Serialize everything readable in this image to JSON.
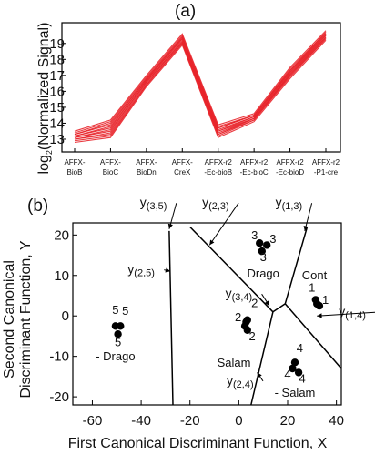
{
  "panel_a": {
    "label": "(a)",
    "ylabel_prefix": "log",
    "ylabel_sub": "2",
    "ylabel_rest": "(Normalized Signal)"
  },
  "panel_b": {
    "label": "(b)",
    "xlabel": "First Canonical Discriminant Function, X",
    "ylabel_line1": "Second Canonical",
    "ylabel_line2": "Discriminant Function, Y"
  },
  "colors": {
    "profile_lines": "#e8232a",
    "points": "#000000",
    "axes": "#000000"
  },
  "chart_data": [
    {
      "type": "line",
      "categories": [
        [
          "AFFX-",
          "BioB"
        ],
        [
          "AFFX-",
          "BioC"
        ],
        [
          "AFFX-",
          "BioDn"
        ],
        [
          "AFFX-",
          "CreX"
        ],
        [
          "AFFX-r2",
          "-Ec-bioB"
        ],
        [
          "AFFX-r2",
          "-Ec-bioC"
        ],
        [
          "AFFX-r2",
          "-Ec-bioD"
        ],
        [
          "AFFX-r2",
          "-P1-cre"
        ]
      ],
      "ylabel": "log2(Normalized Signal)",
      "yticks": [
        13,
        14,
        15,
        16,
        17,
        18,
        19
      ],
      "ylim": [
        12.2,
        20.3
      ],
      "series": [
        {
          "values": [
            12.8,
            13.1,
            16.3,
            18.9,
            13.1,
            14.1,
            16.8,
            19.2
          ]
        },
        {
          "values": [
            12.9,
            13.2,
            16.4,
            19.0,
            13.2,
            14.2,
            16.9,
            19.3
          ]
        },
        {
          "values": [
            13.0,
            13.3,
            16.4,
            19.0,
            13.3,
            14.2,
            17.0,
            19.3
          ]
        },
        {
          "values": [
            13.0,
            13.4,
            16.5,
            19.1,
            13.3,
            14.3,
            17.0,
            19.4
          ]
        },
        {
          "values": [
            13.1,
            13.5,
            16.6,
            19.1,
            13.4,
            14.3,
            17.1,
            19.4
          ]
        },
        {
          "values": [
            13.1,
            13.6,
            16.6,
            19.2,
            13.5,
            14.3,
            17.1,
            19.5
          ]
        },
        {
          "values": [
            13.2,
            13.7,
            16.7,
            19.3,
            13.5,
            14.4,
            17.2,
            19.5
          ]
        },
        {
          "values": [
            13.2,
            13.8,
            16.7,
            19.3,
            13.6,
            14.4,
            17.2,
            19.6
          ]
        },
        {
          "values": [
            13.3,
            13.9,
            16.8,
            19.4,
            13.7,
            14.5,
            17.3,
            19.6
          ]
        },
        {
          "values": [
            13.3,
            14.0,
            16.8,
            19.4,
            13.7,
            14.5,
            17.3,
            19.7
          ]
        },
        {
          "values": [
            13.4,
            14.1,
            16.9,
            19.5,
            13.8,
            14.5,
            17.4,
            19.7
          ]
        },
        {
          "values": [
            13.5,
            14.2,
            17.0,
            19.6,
            13.9,
            14.6,
            17.5,
            19.8
          ]
        }
      ]
    },
    {
      "type": "scatter",
      "xlabel": "First Canonical Discriminant Function, X",
      "ylabel": "Second Canonical Discriminant Function, Y",
      "xlim": [
        -68,
        42
      ],
      "ylim": [
        -22,
        23
      ],
      "xticks": [
        -60,
        -40,
        -20,
        0,
        20,
        40
      ],
      "yticks": [
        -20,
        -10,
        0,
        10,
        20
      ],
      "groups": [
        {
          "marker": "5",
          "region": "- Drago",
          "points": [
            [
              -50.5,
              -2.5
            ],
            [
              -48.5,
              -2.5
            ],
            [
              -49.5,
              -4.5
            ]
          ]
        },
        {
          "marker": "2",
          "region": "Salam",
          "points": [
            [
              3.5,
              -1.0
            ],
            [
              2.5,
              -2.5
            ],
            [
              3.5,
              -3.5
            ],
            [
              3.0,
              -1.5
            ]
          ]
        },
        {
          "marker": "3",
          "region": "Drago",
          "points": [
            [
              8.5,
              18.0
            ],
            [
              11.5,
              17.5
            ],
            [
              9.5,
              16.0
            ]
          ]
        },
        {
          "marker": "1",
          "region": "Cont",
          "points": [
            [
              31.5,
              4.0
            ],
            [
              33.0,
              2.5
            ],
            [
              32.0,
              3.0
            ]
          ]
        },
        {
          "marker": "4",
          "region": "- Salam",
          "points": [
            [
              23.0,
              -11.5
            ],
            [
              22.0,
              -13.0
            ],
            [
              24.5,
              -14.0
            ]
          ]
        }
      ],
      "region_labels": [
        {
          "text": "5",
          "x": -50.5,
          "y": 0.5
        },
        {
          "text": "5",
          "x": -46.5,
          "y": 0.3
        },
        {
          "text": "5",
          "x": -49.5,
          "y": -7.5
        },
        {
          "text": "- Drago",
          "x": -50.5,
          "y": -11.0
        },
        {
          "text": "2",
          "x": 6.5,
          "y": 2.2
        },
        {
          "text": "2",
          "x": -0.3,
          "y": -1.3
        },
        {
          "text": "2",
          "x": 5.5,
          "y": -6.0
        },
        {
          "text": "Salam",
          "x": -2.0,
          "y": -12.5
        },
        {
          "text": "3",
          "x": 6.5,
          "y": 19.0
        },
        {
          "text": "3",
          "x": 14.0,
          "y": 18.0
        },
        {
          "text": "3",
          "x": 10.0,
          "y": 13.5
        },
        {
          "text": "Drago",
          "x": 10.0,
          "y": 9.5
        },
        {
          "text": "Cont",
          "x": 31.0,
          "y": 9.0
        },
        {
          "text": "1",
          "x": 30.0,
          "y": 6.0
        },
        {
          "text": "1",
          "x": 35.5,
          "y": 3.0
        },
        {
          "text": "4",
          "x": 25.0,
          "y": -9.0
        },
        {
          "text": "4",
          "x": 20.0,
          "y": -15.5
        },
        {
          "text": "4",
          "x": 26.0,
          "y": -16.5
        },
        {
          "text": "- Salam",
          "x": 23.0,
          "y": -20.0
        }
      ],
      "boundaries": [
        {
          "name": "y(3,5)",
          "points": [
            [
              -28.5,
              21.0
            ],
            [
              -27.0,
              -22.0
            ]
          ]
        },
        {
          "name": "y(2,3)",
          "points": [
            [
              -20.0,
              22.0
            ],
            [
              14.0,
              1.0
            ]
          ]
        },
        {
          "name": "y(1,3)",
          "points": [
            [
              28.0,
              22.0
            ],
            [
              19.0,
              3.0
            ]
          ]
        },
        {
          "name": "y(3,4)",
          "points": [
            [
              14.0,
              1.0
            ],
            [
              19.0,
              3.0
            ]
          ]
        },
        {
          "name": "y(2,4)",
          "points": [
            [
              14.0,
              1.0
            ],
            [
              5.0,
              -22.0
            ]
          ]
        },
        {
          "name": "y(1,4)",
          "points": [
            [
              19.0,
              3.0
            ],
            [
              42.0,
              -13.0
            ]
          ]
        }
      ],
      "boundary_labels": [
        {
          "id": "b35",
          "main": "y",
          "sub": "(3,5)",
          "x": -40.5,
          "y": 27.0,
          "arrow_to": [
            -28.5,
            21.5
          ]
        },
        {
          "id": "b23",
          "main": "y",
          "sub": "(2,3)",
          "x": -15.0,
          "y": 27.0,
          "arrow_to": [
            -12.0,
            17.5
          ]
        },
        {
          "id": "b13",
          "main": "y",
          "sub": "(1,3)",
          "x": 15.0,
          "y": 27.0,
          "arrow_to": [
            27.0,
            21.0
          ]
        },
        {
          "id": "b25",
          "main": "y",
          "sub": "(2,5)",
          "x": -45.5,
          "y": 10.5,
          "arrow_to": [
            -28.0,
            11.0
          ]
        },
        {
          "id": "b34",
          "main": "y",
          "sub": "(3,4)",
          "x": -5.5,
          "y": 4.5,
          "arrow_to": [
            12.5,
            2.5
          ]
        },
        {
          "id": "b24",
          "main": "y",
          "sub": "(2,4)",
          "x": -5.0,
          "y": -17.0,
          "arrow_to": [
            7.5,
            -14.0
          ]
        },
        {
          "id": "b14",
          "main": "y",
          "sub": "(1,4)",
          "x": 41.0,
          "y": 0.0,
          "arrow_to": [
            32.0,
            0.0
          ]
        }
      ]
    }
  ]
}
